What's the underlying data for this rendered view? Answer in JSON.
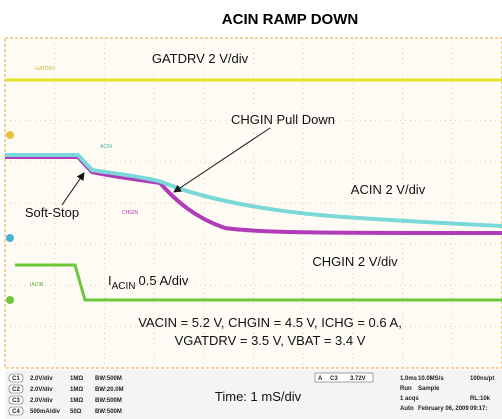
{
  "title": "ACIN RAMP DOWN",
  "traces": {
    "gatdrv": "GATDRV",
    "acin": "ACIN",
    "chgin": "CHGIN",
    "iacin": "IACIN"
  },
  "annotations": {
    "gatdrv": "GATDRV 2 V/div",
    "pull_down": "CHGIN Pull Down",
    "acin": "ACIN 2 V/div",
    "soft_stop": "Soft-Stop",
    "chgin": "CHGIN 2 V/div",
    "iacin": {
      "symbol": "I",
      "subscript": "ACIN",
      "scale": "0.5 A/div"
    },
    "conditions": [
      "VACIN = 5.2 V, CHGIN = 4.5 V, ICHG = 0.6 A,",
      "VGATDRV = 3.5 V, VBAT = 3.4 V"
    ]
  },
  "time": "Time: 1 mS/div",
  "channels": [
    [
      "C1",
      "2.0V/div",
      "1MΩ",
      "BW:500M"
    ],
    [
      "C2",
      "2.0V/div",
      "1MΩ",
      "BW:20.0M"
    ],
    [
      "C3",
      "2.0V/div",
      "1MΩ",
      "BW:500M"
    ],
    [
      "C4",
      "500mA/div",
      "50Ω",
      "BW:500M"
    ]
  ],
  "trigger": [
    "A",
    "C3",
    "3.72V"
  ],
  "acquisition": [
    [
      "1.0ms",
      "10.0MS/s",
      "100ns/pt"
    ],
    [
      "Run",
      "Sample",
      ""
    ],
    [
      "1 acqs",
      "",
      "RL:10k"
    ],
    [
      "Auto",
      "February 06, 2009",
      "09:17:"
    ]
  ]
}
